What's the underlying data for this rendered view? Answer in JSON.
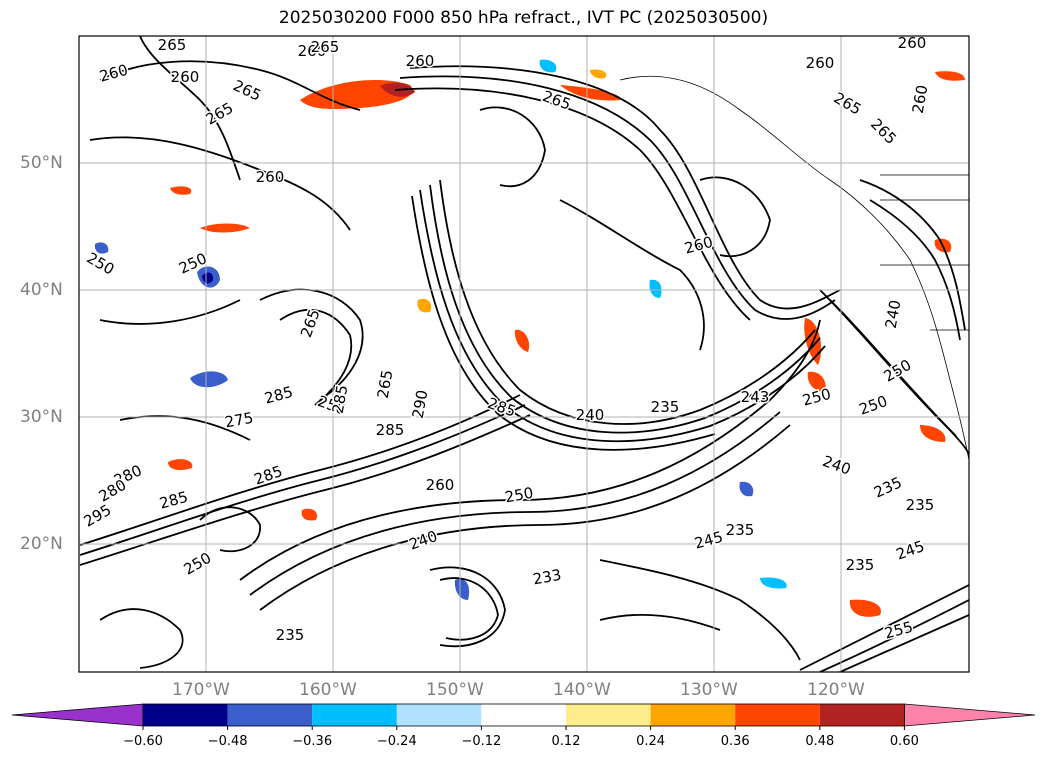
{
  "title": "2025030200 F000 850 hPa refract., IVT PC (2025030500)",
  "map": {
    "lat_labels": [
      "50°N",
      "40°N",
      "30°N",
      "20°N"
    ],
    "lon_labels": [
      "170°W",
      "160°W",
      "150°W",
      "140°W",
      "130°W",
      "120°W"
    ],
    "gridlines": true,
    "contour_labels": [
      "265",
      "260",
      "260",
      "265",
      "260",
      "265",
      "265",
      "260",
      "260",
      "265",
      "260",
      "260",
      "265",
      "265",
      "260",
      "250",
      "250",
      "265",
      "260",
      "275",
      "250",
      "265",
      "290",
      "285",
      "240",
      "235",
      "243",
      "280",
      "285",
      "280",
      "295",
      "285",
      "285",
      "260",
      "250",
      "250",
      "240",
      "233",
      "235",
      "235",
      "240",
      "235",
      "235",
      "245",
      "250",
      "240",
      "250",
      "245",
      "235",
      "285",
      "250",
      "255",
      "285"
    ],
    "colors": {
      "contour": "#000000",
      "gridline": "#b0b0b0",
      "coast": "#000000"
    }
  },
  "colorbar": {
    "bounds": [
      -0.6,
      -0.48,
      -0.36,
      -0.24,
      -0.12,
      0.12,
      0.24,
      0.36,
      0.48,
      0.6
    ],
    "tick_labels": [
      "−0.60",
      "−0.48",
      "−0.36",
      "−0.24",
      "−0.12",
      "0.12",
      "0.24",
      "0.36",
      "0.48",
      "0.60"
    ],
    "colors": [
      "#9932cc",
      "#00008b",
      "#3a5fcd",
      "#00bfff",
      "#b0e2ff",
      "#ffffff",
      "#ffec8b",
      "#ffa500",
      "#ff4500",
      "#b22222",
      "#ff82ab"
    ],
    "extend": "both"
  }
}
